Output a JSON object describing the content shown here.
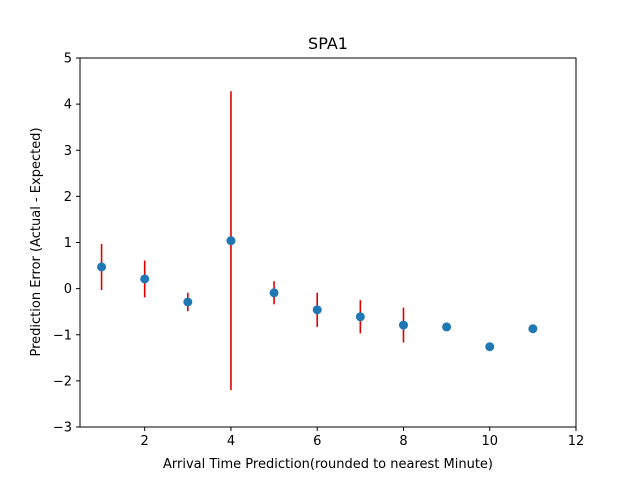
{
  "chart_data": {
    "type": "scatter",
    "title": "SPA1",
    "xlabel": "Arrival Time Prediction(rounded to nearest Minute)",
    "ylabel": "Prediction Error (Actual - Expected)",
    "xlim": [
      0.5,
      12
    ],
    "ylim": [
      -3,
      5
    ],
    "xticks": [
      2,
      4,
      6,
      8,
      10,
      12
    ],
    "yticks": [
      -3,
      -2,
      -1,
      0,
      1,
      2,
      3,
      4,
      5
    ],
    "grid": false,
    "points": [
      {
        "x": 1,
        "y": 0.47,
        "err": 0.5
      },
      {
        "x": 2,
        "y": 0.21,
        "err": 0.4
      },
      {
        "x": 3,
        "y": -0.29,
        "err": 0.2
      },
      {
        "x": 4,
        "y": 1.04,
        "err": 3.24
      },
      {
        "x": 5,
        "y": -0.09,
        "err": 0.25
      },
      {
        "x": 6,
        "y": -0.46,
        "err": 0.37
      },
      {
        "x": 7,
        "y": -0.61,
        "err": 0.36
      },
      {
        "x": 8,
        "y": -0.79,
        "err": 0.38
      },
      {
        "x": 9,
        "y": -0.83,
        "err": 0
      },
      {
        "x": 10,
        "y": -1.26,
        "err": 0
      },
      {
        "x": 11,
        "y": -0.87,
        "err": 0
      }
    ],
    "colors": {
      "marker": "#1f77b4",
      "errorbar": "#e00000",
      "axes": "#000000"
    }
  }
}
